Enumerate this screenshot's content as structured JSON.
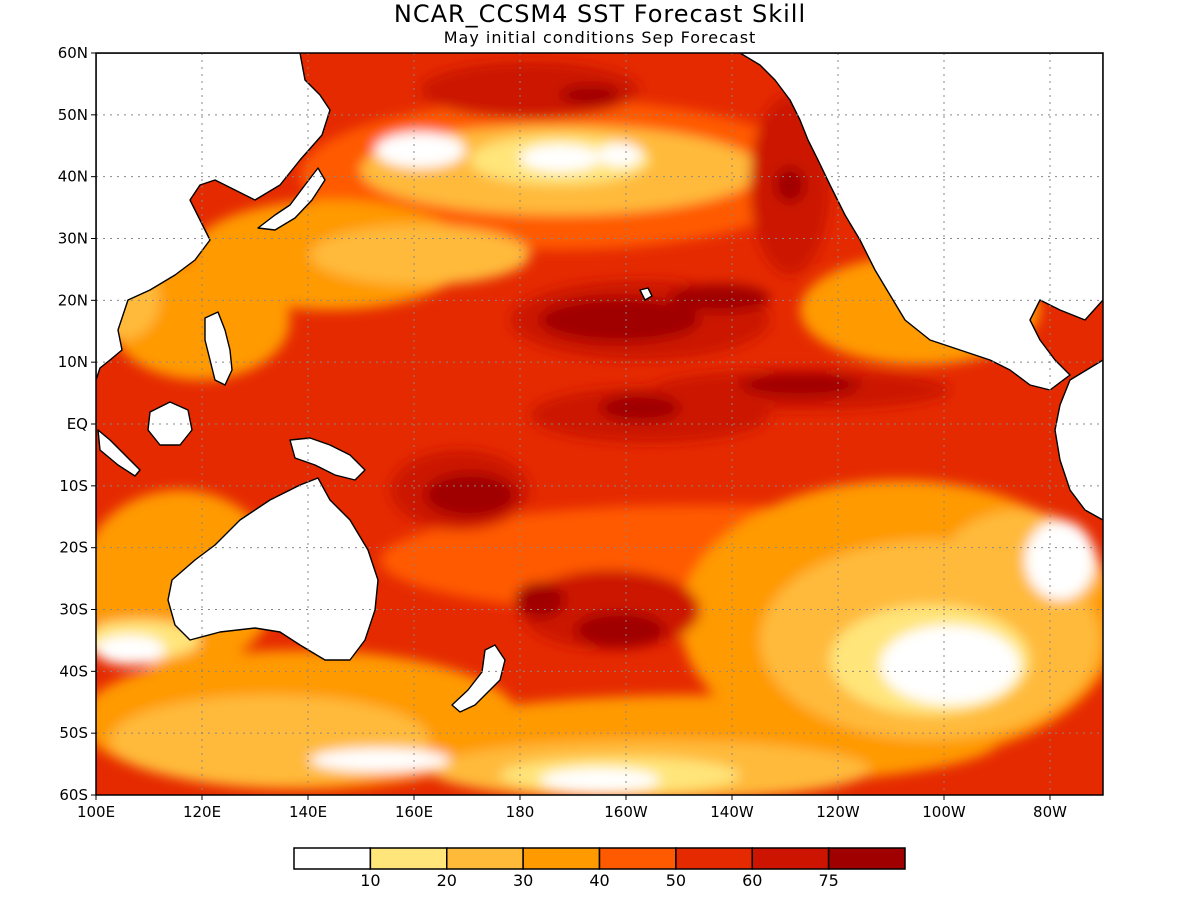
{
  "title": "NCAR_CCSM4 SST Forecast Skill",
  "subtitle": "May initial conditions  Sep Forecast",
  "map": {
    "type": "contour-fill map",
    "lon_range": [
      100,
      290
    ],
    "lat_range": [
      -60,
      60
    ],
    "y_tick_labels": [
      "60N",
      "50N",
      "40N",
      "30N",
      "20N",
      "10N",
      "EQ",
      "10S",
      "20S",
      "30S",
      "40S",
      "50S",
      "60S"
    ],
    "x_tick_labels": [
      "100E",
      "120E",
      "140E",
      "160E",
      "180",
      "160W",
      "140W",
      "120W",
      "100W",
      "80W"
    ],
    "grid": true,
    "coastline_color": "#000000"
  },
  "colorbar": {
    "colors": [
      "#ffffff",
      "#ffe57a",
      "#ffba3a",
      "#ff9a00",
      "#ff5a00",
      "#e52a00",
      "#cc1400",
      "#a00000"
    ],
    "labels": [
      "10",
      "20",
      "30",
      "40",
      "50",
      "60",
      "75"
    ]
  }
}
